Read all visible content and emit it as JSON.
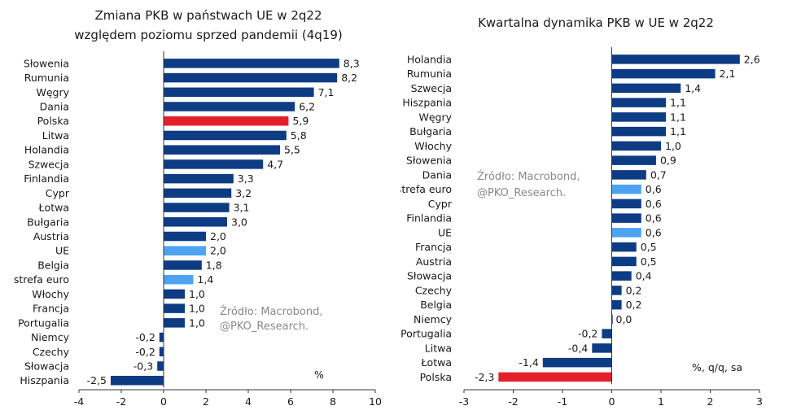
{
  "colors": {
    "default": "#0d3c84",
    "highlight": "#e3202a",
    "euro": "#4da3f2",
    "axis": "#333333"
  },
  "chart_data": [
    {
      "type": "bar",
      "orientation": "horizontal",
      "title": [
        "Zmiana PKB w państwach UE w 2q22",
        "względem poziomu sprzed pandemii (4q19)"
      ],
      "unit": "%",
      "source": [
        "Źródło: Macrobond,",
        "@PKO_Research."
      ],
      "xlim": [
        -4,
        10
      ],
      "xticks": [
        -4,
        -2,
        0,
        2,
        4,
        6,
        8,
        10
      ],
      "tick_labels": [
        "-4",
        "-2",
        "0",
        "2",
        "4",
        "6",
        "8",
        "10"
      ],
      "categories": [
        "Słowenia",
        "Rumunia",
        "Węgry",
        "Dania",
        "Polska",
        "Litwa",
        "Holandia",
        "Szwecja",
        "Finlandia",
        "Cypr",
        "Łotwa",
        "Bułgaria",
        "Austria",
        "UE",
        "Belgia",
        "strefa euro",
        "Włochy",
        "Francja",
        "Portugalia",
        "Niemcy",
        "Czechy",
        "Słowacja",
        "Hiszpania"
      ],
      "values": [
        8.3,
        8.2,
        7.1,
        6.2,
        5.9,
        5.8,
        5.5,
        4.7,
        3.3,
        3.2,
        3.1,
        3.0,
        2.0,
        2.0,
        1.8,
        1.4,
        1.0,
        1.0,
        1.0,
        -0.2,
        -0.2,
        -0.3,
        -2.5
      ],
      "labels": [
        "8,3",
        "8,2",
        "7,1",
        "6,2",
        "5,9",
        "5,8",
        "5,5",
        "4,7",
        "3,3",
        "3,2",
        "3,1",
        "3,0",
        "2,0",
        "2,0",
        "1,8",
        "1,4",
        "1,0",
        "1,0",
        "1,0",
        "-0,2",
        "-0,2",
        "-0,3",
        "-2,5"
      ],
      "highlight": {
        "Polska": "highlight",
        "UE": "euro",
        "strefa euro": "euro"
      }
    },
    {
      "type": "bar",
      "orientation": "horizontal",
      "title": [
        "Kwartalna dynamika PKB w UE w 2q22"
      ],
      "unit": "%, q/q, sa",
      "source": [
        "Źródło: Macrobond,",
        "@PKO_Research."
      ],
      "xlim": [
        -3,
        3
      ],
      "xticks": [
        -3,
        -2,
        -1,
        0,
        1,
        2,
        3
      ],
      "tick_labels": [
        "-3",
        "-2",
        "-1",
        "0",
        "1",
        "2",
        "3"
      ],
      "categories": [
        "Holandia",
        "Rumunia",
        "Szwecja",
        "Hiszpania",
        "Węgry",
        "Bułgaria",
        "Włochy",
        "Słowenia",
        "Dania",
        "strefa euro",
        "Cypr",
        "Finlandia",
        "UE",
        "Francja",
        "Austria",
        "Słowacja",
        "Czechy",
        "Belgia",
        "Niemcy",
        "Portugalia",
        "Litwa",
        "Łotwa",
        "Polska"
      ],
      "values": [
        2.6,
        2.1,
        1.4,
        1.1,
        1.1,
        1.1,
        1.0,
        0.9,
        0.7,
        0.6,
        0.6,
        0.6,
        0.6,
        0.5,
        0.5,
        0.4,
        0.2,
        0.2,
        0.0,
        -0.2,
        -0.4,
        -1.4,
        -2.3
      ],
      "labels": [
        "2,6",
        "2,1",
        "1,4",
        "1,1",
        "1,1",
        "1,1",
        "1,0",
        "0,9",
        "0,7",
        "0,6",
        "0,6",
        "0,6",
        "0,6",
        "0,5",
        "0,5",
        "0,4",
        "0,2",
        "0,2",
        "0,0",
        "-0,2",
        "-0,4",
        "-1,4",
        "-2,3"
      ],
      "highlight": {
        "Polska": "highlight",
        "UE": "euro",
        "strefa euro": "euro"
      }
    }
  ]
}
